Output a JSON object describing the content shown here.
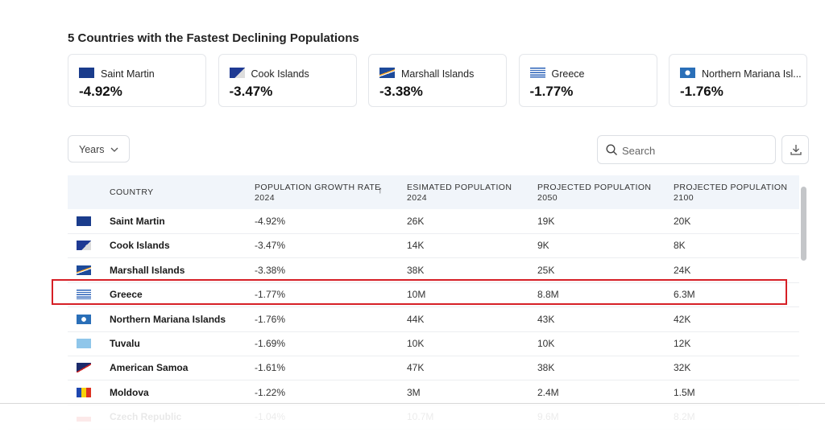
{
  "title": "5 Countries with the Fastest Declining Populations",
  "cards": [
    {
      "name": "Saint Martin",
      "value": "-4.92%"
    },
    {
      "name": "Cook Islands",
      "value": "-3.47%"
    },
    {
      "name": "Marshall Islands",
      "value": "-3.38%"
    },
    {
      "name": "Greece",
      "value": "-1.77%"
    },
    {
      "name": "Northern Mariana Isl...",
      "value": "-1.76%"
    }
  ],
  "controls": {
    "filter": "Years",
    "search_placeholder": "Search"
  },
  "table": {
    "headers": [
      [
        "COUNTRY"
      ],
      [
        "POPULATION GROWTH RATE",
        "2024"
      ],
      [
        "ESIMATED POPULATION",
        "2024"
      ],
      [
        "PROJECTED POPULATION",
        "2050"
      ],
      [
        "PROJECTED POPULATION",
        "2100"
      ]
    ],
    "rows": [
      [
        "Saint Martin",
        "-4.92%",
        "26K",
        "19K",
        "20K"
      ],
      [
        "Cook Islands",
        "-3.47%",
        "14K",
        "9K",
        "8K"
      ],
      [
        "Marshall Islands",
        "-3.38%",
        "38K",
        "25K",
        "24K"
      ],
      [
        "Greece",
        "-1.77%",
        "10M",
        "8.8M",
        "6.3M"
      ],
      [
        "Northern Mariana Islands",
        "-1.76%",
        "44K",
        "43K",
        "42K"
      ],
      [
        "Tuvalu",
        "-1.69%",
        "10K",
        "10K",
        "12K"
      ],
      [
        "American Samoa",
        "-1.61%",
        "47K",
        "38K",
        "32K"
      ],
      [
        "Moldova",
        "-1.22%",
        "3M",
        "2.4M",
        "1.5M"
      ],
      [
        "Czech Republic",
        "-1.04%",
        "10.7M",
        "9.6M",
        "8.2M"
      ]
    ]
  }
}
